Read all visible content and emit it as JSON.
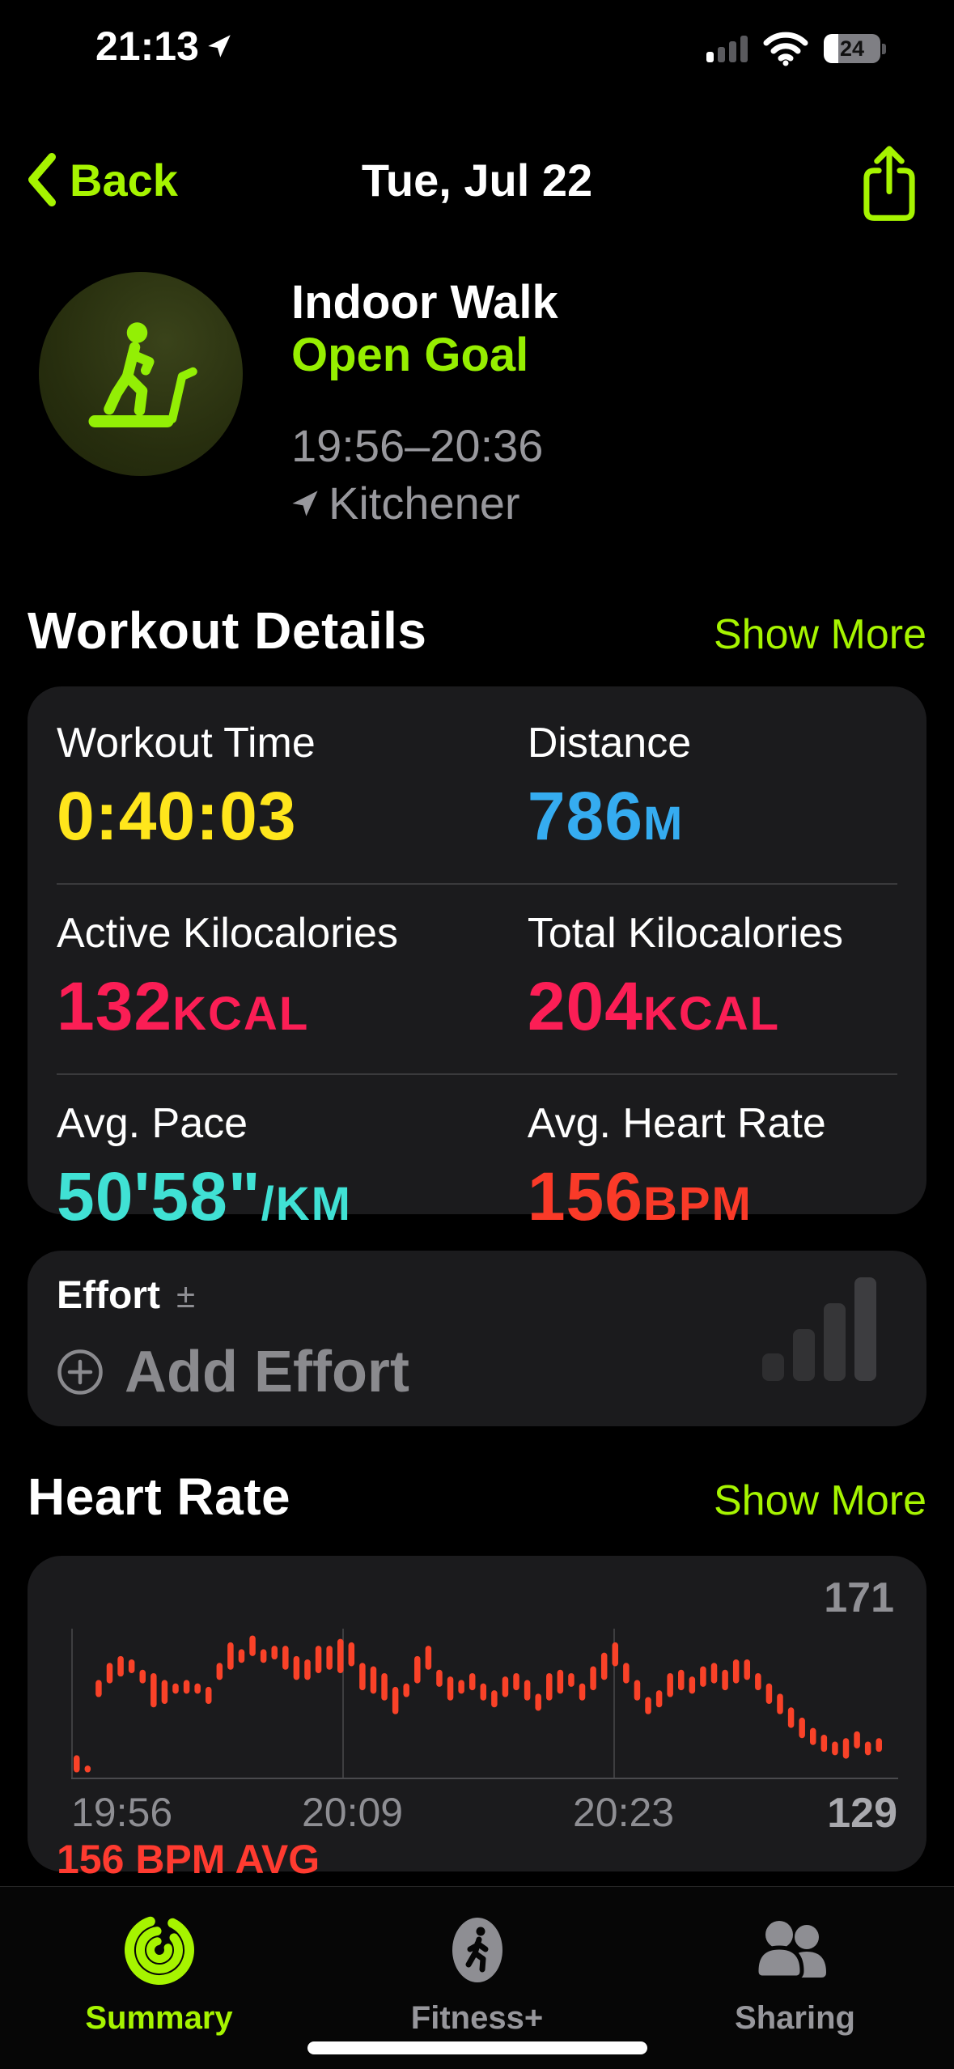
{
  "status_bar": {
    "time": "21:13",
    "battery_percent": "24"
  },
  "nav": {
    "back_label": "Back",
    "title": "Tue, Jul 22"
  },
  "workout_header": {
    "activity": "Indoor Walk",
    "goal": "Open Goal",
    "time_range": "19:56–20:36",
    "location": "Kitchener"
  },
  "sections": {
    "workout_details": {
      "title": "Workout Details",
      "show_more": "Show More"
    },
    "heart_rate": {
      "title": "Heart Rate",
      "show_more": "Show More"
    }
  },
  "metrics": [
    {
      "label": "Workout Time",
      "value": "0:40:03",
      "unit": "",
      "color": "#ffe61c"
    },
    {
      "label": "Distance",
      "value": "786",
      "unit": "M",
      "color": "#35acf0"
    },
    {
      "label": "Active Kilocalories",
      "value": "132",
      "unit": "KCAL",
      "color": "#fb1e55"
    },
    {
      "label": "Total Kilocalories",
      "value": "204",
      "unit": "KCAL",
      "color": "#fb1e55"
    },
    {
      "label": "Avg. Pace",
      "value": "50'58\"",
      "unit": "/KM",
      "color": "#40e1d4"
    },
    {
      "label": "Avg. Heart Rate",
      "value": "156",
      "unit": "BPM",
      "color": "#fa3a28"
    }
  ],
  "effort": {
    "title": "Effort",
    "plusminus": "±",
    "add_label": "Add Effort"
  },
  "chart_data": {
    "type": "bar",
    "title": "Heart Rate",
    "ylabel": "BPM",
    "y_max_label": "171",
    "y_min_label": "129",
    "ylim": [
      127,
      171
    ],
    "x_tick_labels": [
      "19:56",
      "20:09",
      "20:23"
    ],
    "x_range": [
      "19:56",
      "20:36"
    ],
    "avg_label": "156 BPM AVG",
    "avg_bpm": 156,
    "bar_color": "#f94228",
    "grid": "vertical-thirds",
    "bars": [
      [
        129,
        134
      ],
      [
        129,
        131
      ],
      [
        151,
        156
      ],
      [
        155,
        161
      ],
      [
        157,
        163
      ],
      [
        158,
        162
      ],
      [
        155,
        159
      ],
      [
        148,
        158
      ],
      [
        149,
        156
      ],
      [
        152,
        155
      ],
      [
        152,
        156
      ],
      [
        152,
        155
      ],
      [
        149,
        154
      ],
      [
        156,
        161
      ],
      [
        159,
        167
      ],
      [
        161,
        165
      ],
      [
        163,
        169
      ],
      [
        161,
        165
      ],
      [
        162,
        166
      ],
      [
        159,
        166
      ],
      [
        156,
        163
      ],
      [
        156,
        162
      ],
      [
        158,
        166
      ],
      [
        159,
        166
      ],
      [
        158,
        168
      ],
      [
        160,
        167
      ],
      [
        153,
        161
      ],
      [
        152,
        160
      ],
      [
        150,
        158
      ],
      [
        146,
        154
      ],
      [
        151,
        155
      ],
      [
        155,
        163
      ],
      [
        159,
        166
      ],
      [
        154,
        159
      ],
      [
        150,
        157
      ],
      [
        152,
        156
      ],
      [
        153,
        158
      ],
      [
        150,
        155
      ],
      [
        148,
        153
      ],
      [
        151,
        157
      ],
      [
        153,
        158
      ],
      [
        150,
        156
      ],
      [
        147,
        152
      ],
      [
        150,
        158
      ],
      [
        152,
        159
      ],
      [
        154,
        158
      ],
      [
        150,
        155
      ],
      [
        153,
        160
      ],
      [
        156,
        164
      ],
      [
        160,
        167
      ],
      [
        155,
        161
      ],
      [
        150,
        156
      ],
      [
        146,
        151
      ],
      [
        148,
        153
      ],
      [
        151,
        158
      ],
      [
        153,
        159
      ],
      [
        152,
        157
      ],
      [
        154,
        160
      ],
      [
        155,
        161
      ],
      [
        153,
        159
      ],
      [
        155,
        162
      ],
      [
        156,
        162
      ],
      [
        153,
        158
      ],
      [
        149,
        155
      ],
      [
        146,
        152
      ],
      [
        142,
        148
      ],
      [
        139,
        145
      ],
      [
        137,
        142
      ],
      [
        135,
        140
      ],
      [
        134,
        138
      ],
      [
        133,
        139
      ],
      [
        136,
        141
      ],
      [
        134,
        138
      ],
      [
        135,
        139
      ]
    ]
  },
  "tab_bar": {
    "tabs": [
      {
        "label": "Summary",
        "active": true
      },
      {
        "label": "Fitness+",
        "active": false
      },
      {
        "label": "Sharing",
        "active": false
      }
    ]
  },
  "colors": {
    "accent_green": "#a6f400",
    "open_goal_green": "#96ee00",
    "card_bg": "#1b1b1d",
    "secondary_text": "#98989d",
    "chart_red": "#f94228",
    "avg_red": "#ff3b30"
  }
}
